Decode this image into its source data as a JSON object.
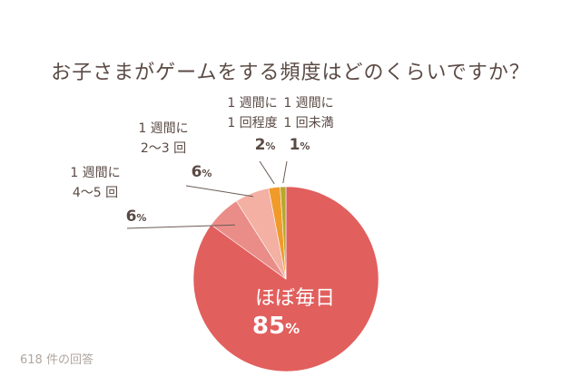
{
  "title": "お子さまがゲームをする頻度はどのくらいですか？",
  "footnote": "618 件の回答",
  "chart_data": {
    "type": "pie",
    "slices": [
      {
        "label_lines": [
          "ほぼ毎日"
        ],
        "value": 85,
        "value_text": "85",
        "unit": "%",
        "color": "#e15f5d"
      },
      {
        "label_lines": [
          "1 週間に",
          "4〜5 回"
        ],
        "value": 6,
        "value_text": "6",
        "unit": "%",
        "color": "#ea8d88"
      },
      {
        "label_lines": [
          "1 週間に",
          "2〜3 回"
        ],
        "value": 6,
        "value_text": "6",
        "unit": "%",
        "color": "#f3b0a3"
      },
      {
        "label_lines": [
          "1 週間に",
          "1 回程度"
        ],
        "value": 2,
        "value_text": "2",
        "unit": "%",
        "color": "#f09a2a"
      },
      {
        "label_lines": [
          "1 週間に",
          "1 回未満"
        ],
        "value": 1,
        "value_text": "1",
        "unit": "%",
        "color": "#b5a92c"
      }
    ]
  }
}
